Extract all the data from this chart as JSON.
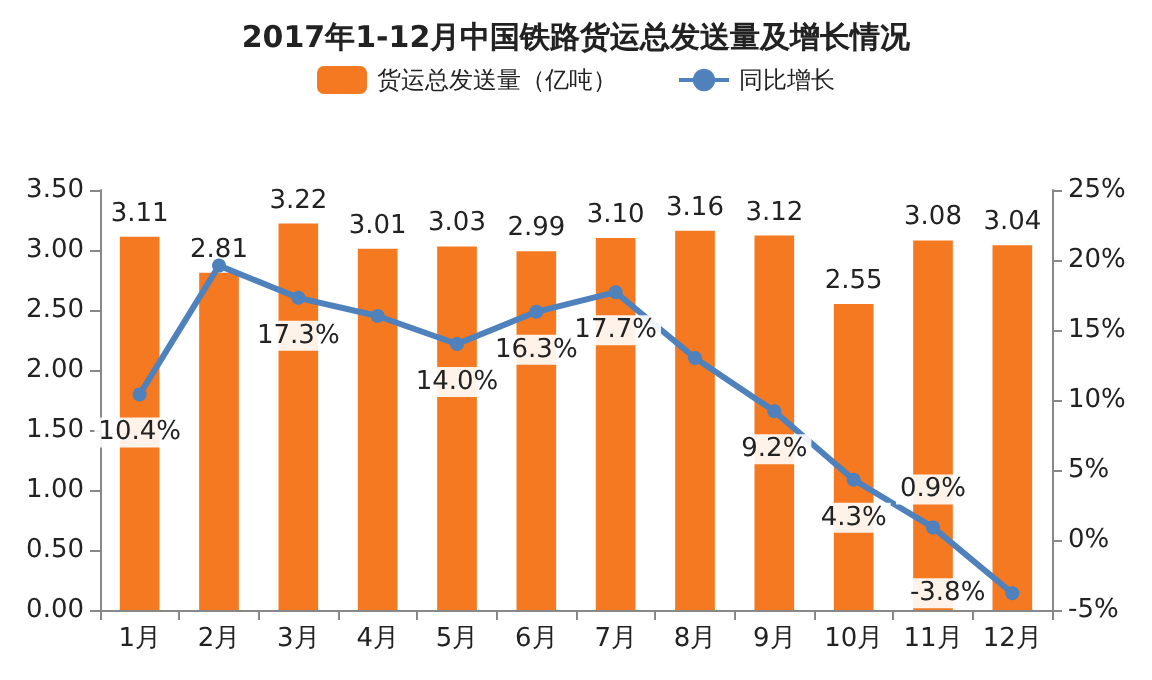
{
  "chart_data": {
    "type": "bar",
    "title": "2017年1-12月中国铁路货运总发送量及增长情况",
    "categories": [
      "1月",
      "2月",
      "3月",
      "4月",
      "5月",
      "6月",
      "7月",
      "8月",
      "9月",
      "10月",
      "11月",
      "12月"
    ],
    "series": [
      {
        "name": "货运总发送量（亿吨）",
        "color": "#f47920",
        "values": [
          3.11,
          2.81,
          3.22,
          3.01,
          3.03,
          2.99,
          3.1,
          3.16,
          3.12,
          2.55,
          3.08,
          3.04
        ],
        "value_labels": [
          "3.11",
          "2.81",
          "3.22",
          "3.01",
          "3.03",
          "2.99",
          "3.10",
          "3.16",
          "3.12",
          "2.55",
          "3.08",
          "3.04"
        ]
      },
      {
        "name": "同比增长",
        "type": "line",
        "axis": "y2",
        "color": "#4f81bd",
        "marker": "circle",
        "values": [
          10.4,
          19.6,
          17.3,
          16.0,
          14.0,
          16.3,
          17.7,
          13.0,
          9.2,
          4.3,
          0.9,
          -3.8
        ],
        "value_labels": [
          "10.4%",
          null,
          "17.3%",
          null,
          "14.0%",
          "16.3%",
          "17.7%",
          null,
          "9.2%",
          "4.3%",
          "0.9%",
          "-3.8%"
        ]
      }
    ],
    "ylim": [
      0,
      3.5
    ],
    "yticks": [
      {
        "value": 0,
        "label": "0.00"
      },
      {
        "value": 0.5,
        "label": "0.50"
      },
      {
        "value": 1,
        "label": "1.00"
      },
      {
        "value": 1.5,
        "label": "1.50"
      },
      {
        "value": 2,
        "label": "2.00"
      },
      {
        "value": 2.5,
        "label": "2.50"
      },
      {
        "value": 3,
        "label": "3.00"
      },
      {
        "value": 3.5,
        "label": "3.50"
      }
    ],
    "y2lim": [
      -5,
      25
    ],
    "y2ticks": [
      {
        "value": -5,
        "label": "-5%"
      },
      {
        "value": 0,
        "label": "0%"
      },
      {
        "value": 5,
        "label": "5%"
      },
      {
        "value": 10,
        "label": "10%"
      },
      {
        "value": 15,
        "label": "15%"
      },
      {
        "value": 20,
        "label": "20%"
      },
      {
        "value": 25,
        "label": "25%"
      }
    ],
    "legend": "top",
    "grid": false
  }
}
